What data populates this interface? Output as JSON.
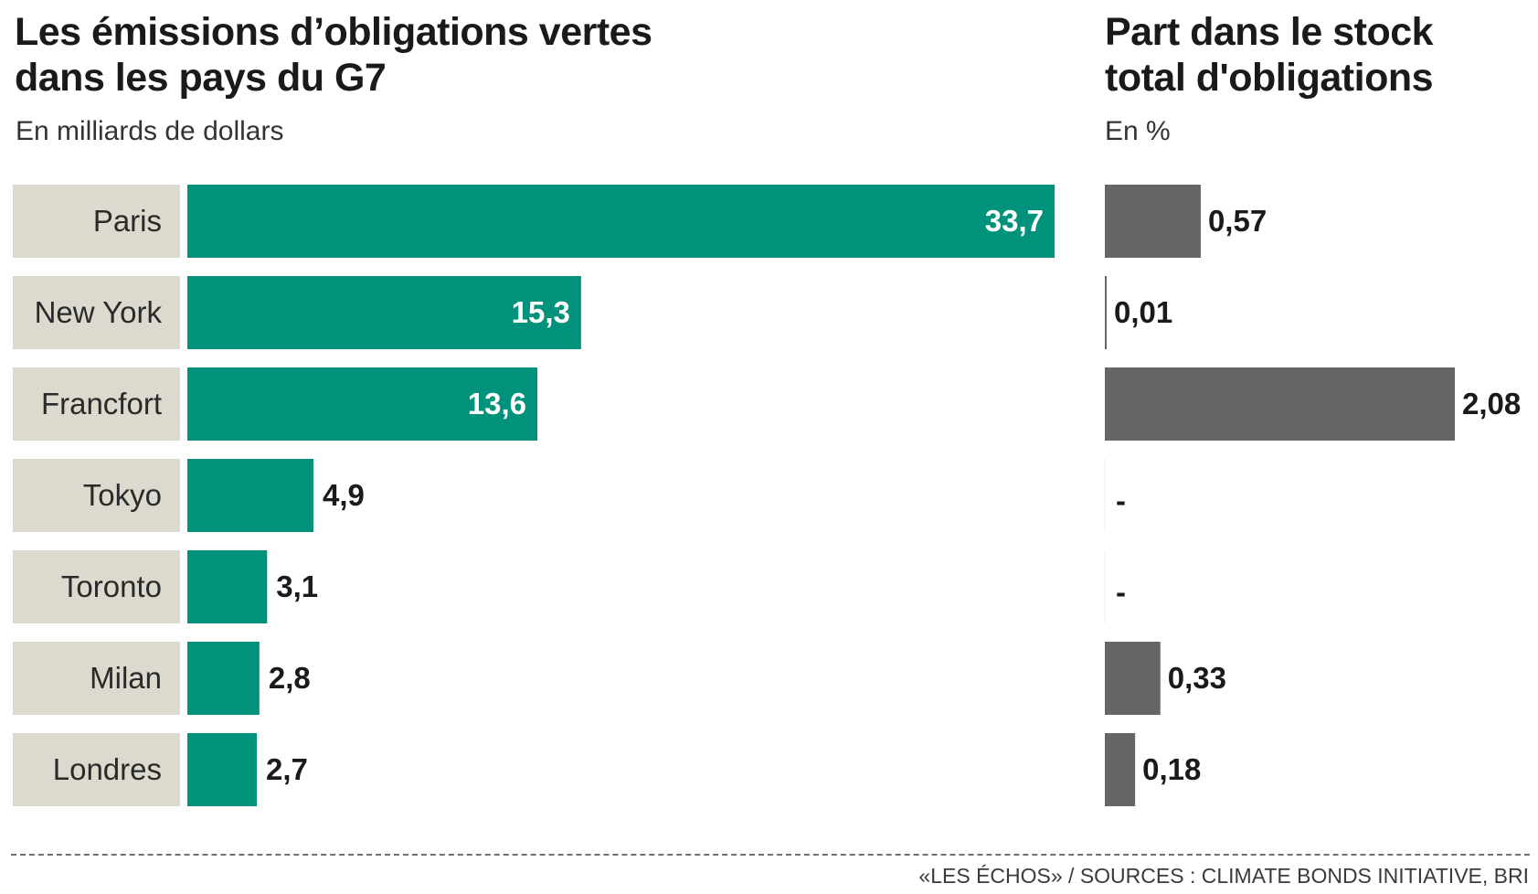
{
  "chart_data": [
    {
      "type": "bar",
      "orientation": "horizontal",
      "title": "Les émissions d’obligations vertes dans les pays du G7",
      "title_lines": [
        "Les émissions d’obligations vertes",
        "dans les pays du G7"
      ],
      "subtitle": "En milliards de dollars",
      "categories": [
        "Paris",
        "New York",
        "Francfort",
        "Tokyo",
        "Toronto",
        "Milan",
        "Londres"
      ],
      "values": [
        33.7,
        15.3,
        13.6,
        4.9,
        3.1,
        2.8,
        2.7
      ],
      "value_labels": [
        "33,7",
        "15,3",
        "13,6",
        "4,9",
        "3,1",
        "2,8",
        "2,7"
      ],
      "xlim": [
        0,
        33.7
      ],
      "grid": false,
      "color": "#00927a",
      "label_band_color": "#dcd9cf"
    },
    {
      "type": "bar",
      "orientation": "horizontal",
      "title": "Part dans le stock total d'obligations",
      "title_lines": [
        "Part dans le stock",
        "total d'obligations"
      ],
      "subtitle": "En %",
      "categories": [
        "Paris",
        "New York",
        "Francfort",
        "Tokyo",
        "Toronto",
        "Milan",
        "Londres"
      ],
      "values": [
        0.57,
        0.01,
        2.08,
        null,
        null,
        0.33,
        0.18
      ],
      "value_labels": [
        "0,57",
        "0,01",
        "2,08",
        "-",
        "-",
        "0,33",
        "0,18"
      ],
      "xlim": [
        0,
        2.08
      ],
      "grid": false,
      "color": "#666666"
    }
  ],
  "footer": {
    "source": "«LES ÉCHOS» / SOURCES : CLIMATE BONDS INITIATIVE, BRI"
  }
}
